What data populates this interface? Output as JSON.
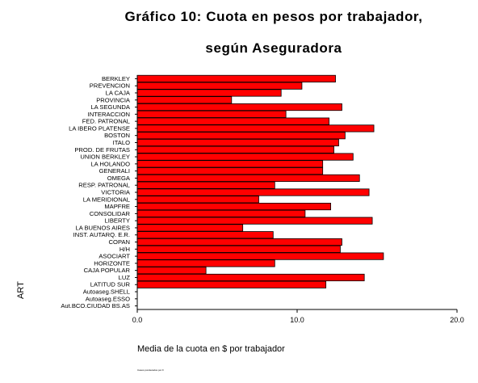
{
  "title_line1": "Gráfico 10: Cuota en pesos por trabajador,",
  "title_line2": "según Aseguradora",
  "footnote": "Casos ponderados por F",
  "chart_data": {
    "type": "bar",
    "orientation": "horizontal",
    "title": "Gráfico 10: Cuota en pesos por trabajador, según Aseguradora",
    "xlabel": "Media de la cuota en $ por trabajador",
    "ylabel": "ART",
    "xlim": [
      0,
      20
    ],
    "xticks": [
      "0.0",
      "10.0",
      "20.0"
    ],
    "grid": false,
    "bar_color": "#ff0000",
    "categories": [
      "BERKLEY",
      "PREVENCION",
      "LA CAJA",
      "PROVINCIA",
      "LA SEGUNDA",
      "INTERACCION",
      "FED. PATRONAL",
      "LA IBERO PLATENSE",
      "BOSTON",
      "ITALO",
      "PROD. DE FRUTAS",
      "UNION BERKLEY",
      "LA HOLANDO",
      "GENERALI",
      "OMEGA",
      "RESP. PATRONAL",
      "VICTORIA",
      "LA MERIDIONAL",
      "MAPFRE",
      "CONSOLIDAR",
      "LIBERTY",
      "LA BUENOS AIRES",
      "INST. AUTARQ. E.R.",
      "COPAN",
      "H/H",
      "ASOCIART",
      "HORIZONTE",
      "CAJA POPULAR",
      "LUZ",
      "LATITUD SUR",
      "Autoaseg.SHELL",
      "Autoaseg.ESSO",
      "Aut.BCO.CIUDAD BS.AS"
    ],
    "values": [
      12.4,
      10.3,
      9.0,
      5.9,
      12.8,
      9.3,
      12.0,
      14.8,
      13.0,
      12.6,
      12.3,
      13.5,
      11.6,
      11.6,
      13.9,
      8.6,
      14.5,
      7.6,
      12.1,
      10.5,
      14.7,
      6.6,
      8.5,
      12.8,
      12.7,
      15.4,
      8.6,
      4.3,
      14.2,
      11.8,
      0,
      0,
      0
    ]
  }
}
